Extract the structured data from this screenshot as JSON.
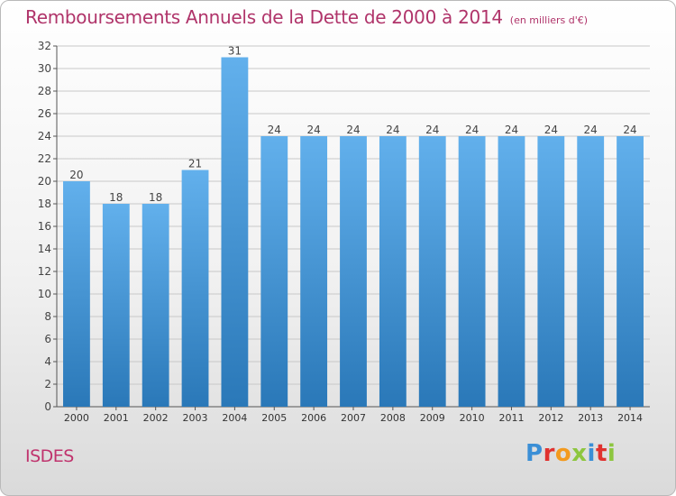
{
  "header": {
    "title": "Remboursements Annuels de la Dette de 2000 à 2014",
    "unit": "(en milliers d'€)"
  },
  "footer": {
    "commune": "ISDES",
    "logo_text": "Proxiti",
    "logo_colors": [
      "#3b8fd6",
      "#e0322f",
      "#f39a1e",
      "#8dc63f",
      "#3b8fd6",
      "#e0322f",
      "#8dc63f"
    ]
  },
  "chart_data": {
    "type": "bar",
    "categories": [
      "2000",
      "2001",
      "2002",
      "2003",
      "2004",
      "2005",
      "2006",
      "2007",
      "2008",
      "2009",
      "2010",
      "2011",
      "2012",
      "2013",
      "2014"
    ],
    "values": [
      20,
      18,
      18,
      21,
      31,
      24,
      24,
      24,
      24,
      24,
      24,
      24,
      24,
      24,
      24
    ],
    "title": "Remboursements Annuels de la Dette de 2000 à 2014",
    "subtitle": "(en milliers d'€)",
    "xlabel": "",
    "ylabel": "",
    "ylim": [
      0,
      32
    ],
    "yticks": [
      0,
      2,
      4,
      6,
      8,
      10,
      12,
      14,
      16,
      18,
      20,
      22,
      24,
      26,
      28,
      30,
      32
    ],
    "grid": true,
    "legend": "none",
    "colors": {
      "bar_light": "#62b0ec",
      "bar_dark": "#2a78b8",
      "grid": "#c8c8c8",
      "axis": "#555555",
      "label": "#444444"
    }
  }
}
